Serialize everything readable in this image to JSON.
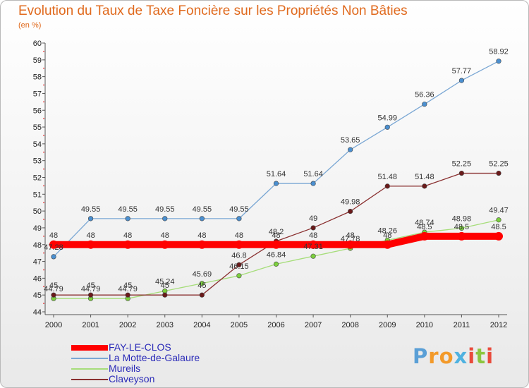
{
  "title": "Evolution du Taux de Taxe Foncière sur les Propriétés Non Bâties",
  "subtitle": "(en %)",
  "logo": {
    "text": "Proxiti",
    "letters": [
      {
        "char": "P",
        "color": "#5a9fd6"
      },
      {
        "char": "r",
        "color": "#f39a2a"
      },
      {
        "char": "o",
        "color": "#f39a2a"
      },
      {
        "char": "x",
        "color": "#4fb2e0"
      },
      {
        "char": "i",
        "color": "#e94b3c"
      },
      {
        "char": "t",
        "color": "#8cc63f"
      },
      {
        "char": "i",
        "color": "#e94b3c"
      }
    ]
  },
  "chart_data": {
    "type": "line",
    "title": "Evolution du Taux de Taxe Foncière sur les Propriétés Non Bâties",
    "ylabel": "(en %)",
    "xlabel": "",
    "ylim": [
      44,
      60
    ],
    "yticks": [
      44,
      45,
      46,
      47,
      48,
      49,
      50,
      51,
      52,
      53,
      54,
      55,
      56,
      57,
      58,
      59,
      60
    ],
    "x": [
      "2000",
      "2001",
      "2002",
      "2003",
      "2004",
      "2005",
      "2006",
      "2007",
      "2008",
      "2009",
      "2010",
      "2011",
      "2012"
    ],
    "grid": false,
    "legend": "bottom-left",
    "series": [
      {
        "name": "La Motte-de-Galaure",
        "color": "#7aa7d4",
        "marker": "#4a8fd0",
        "values": [
          47.28,
          49.55,
          49.55,
          49.55,
          49.55,
          49.55,
          51.64,
          51.64,
          53.65,
          54.99,
          56.36,
          57.77,
          58.92
        ],
        "labels": [
          "47.28",
          "49.55",
          "49.55",
          "49.55",
          "49.55",
          "49.55",
          "51.64",
          "51.64",
          "53.65",
          "54.99",
          "56.36",
          "57.77",
          "58.92"
        ]
      },
      {
        "name": "Mureils",
        "color": "#a6dd7a",
        "marker": "#7ccf3e",
        "values": [
          44.79,
          44.79,
          44.79,
          45.24,
          45.69,
          46.15,
          46.84,
          47.31,
          47.78,
          48.26,
          48.74,
          48.98,
          49.47
        ],
        "labels": [
          "44.79",
          "44.79",
          "44.79",
          "45.24",
          "45.69",
          "46.15",
          "46.84",
          "47.31",
          "47.78",
          "48.26",
          "48.74",
          "48.98",
          "49.47"
        ]
      },
      {
        "name": "Claveyson",
        "color": "#8a3030",
        "marker": "#6a1a1a",
        "values": [
          45,
          45,
          45,
          45,
          45,
          46.8,
          48.2,
          49,
          49.98,
          51.48,
          51.48,
          52.25,
          52.25
        ],
        "labels": [
          "45",
          "45",
          "45",
          "45",
          "45",
          "46.8",
          "48.2",
          "49",
          "49.98",
          "51.48",
          "51.48",
          "52.25",
          "52.25"
        ]
      },
      {
        "name": "FAY-LE-CLOS",
        "color": "#ff0000",
        "marker": "#ff0000",
        "thick": true,
        "values": [
          48,
          48,
          48,
          48,
          48,
          48,
          48,
          48,
          48,
          48,
          48.5,
          48.5,
          48.5
        ],
        "labels": [
          "48",
          "48",
          "48",
          "48",
          "48",
          "48",
          "48",
          "48",
          "48",
          "48",
          "48.5",
          "48.5",
          "48.5"
        ]
      }
    ],
    "legend_order": [
      "FAY-LE-CLOS",
      "La Motte-de-Galaure",
      "Mureils",
      "Claveyson"
    ]
  }
}
